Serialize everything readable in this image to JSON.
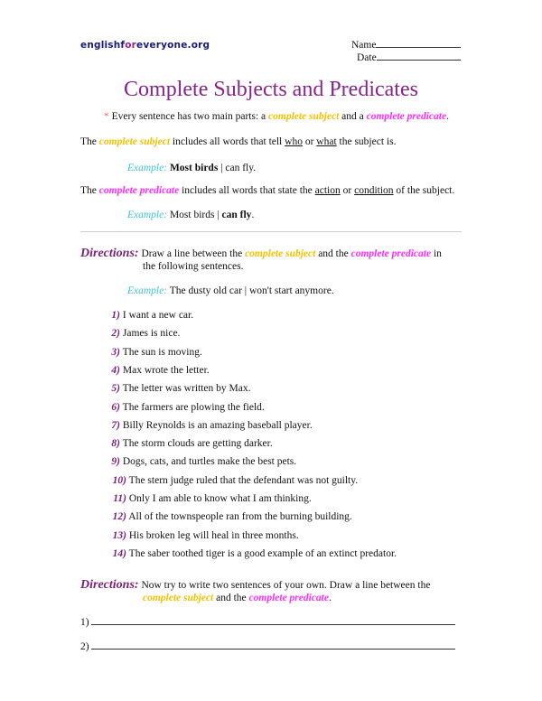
{
  "header": {
    "site_pre": "englishf",
    "site_mid": "or",
    "site_post": "everyone.org",
    "name_label": "Name",
    "date_label": "Date"
  },
  "title": "Complete Subjects and Predicates",
  "intro": {
    "star": "*",
    "text": "Every sentence has two main parts: a ",
    "subject": "complete subject",
    "and": " and a ",
    "predicate": "complete predicate",
    "end": "."
  },
  "subject_def": {
    "pre": "The ",
    "term": "complete subject",
    "mid": " includes all words that tell ",
    "who": "who",
    "or": " or ",
    "what": "what",
    "end": " the subject is."
  },
  "subject_example": {
    "label": "Example:",
    "bold": "Most birds",
    "rest": " | can fly."
  },
  "predicate_def": {
    "pre": "The ",
    "term": "complete predicate",
    "mid": " includes all words that state the ",
    "action": "action",
    "or": " or ",
    "condition": "condition",
    "end": " of the subject."
  },
  "predicate_example": {
    "label": "Example:",
    "rest": "Most birds | ",
    "bold": "can fly",
    "end": "."
  },
  "directions1": {
    "label": "Directions:",
    "text1": "Draw a line between the ",
    "subject": "complete subject",
    "and": " and the ",
    "predicate": "complete predicate",
    "text2": " in",
    "line2": "the following sentences."
  },
  "example3": {
    "label": "Example:",
    "text": "The dusty old car | won't start anymore."
  },
  "sentences": [
    {
      "n": "1)",
      "t": "I want a new car."
    },
    {
      "n": "2)",
      "t": "James is nice."
    },
    {
      "n": "3)",
      "t": "The sun is moving."
    },
    {
      "n": "4)",
      "t": "Max wrote the letter."
    },
    {
      "n": "5)",
      "t": "The letter was written by Max."
    },
    {
      "n": "6)",
      "t": "The farmers are plowing the field."
    },
    {
      "n": "7)",
      "t": "Billy Reynolds is an amazing baseball player."
    },
    {
      "n": "8)",
      "t": "The storm clouds are getting darker."
    },
    {
      "n": "9)",
      "t": "Dogs, cats, and turtles make the best pets."
    },
    {
      "n": "10)",
      "t": "The stern judge ruled that the defendant was not guilty."
    },
    {
      "n": "11)",
      "t": "Only I am able to know what I am thinking."
    },
    {
      "n": "12)",
      "t": "All of the townspeople ran from the burning building."
    },
    {
      "n": "13)",
      "t": "His broken leg will heal in three months."
    },
    {
      "n": "14)",
      "t": "The saber toothed tiger is a good example of an extinct predator."
    }
  ],
  "directions2": {
    "label": "Directions:",
    "text1": "Now try to write two sentences of your own. Draw a line between the",
    "subject": "complete subject",
    "and": " and the ",
    "predicate": "complete predicate",
    "end": "."
  },
  "answers": [
    {
      "n": "1)"
    },
    {
      "n": "2)"
    }
  ]
}
